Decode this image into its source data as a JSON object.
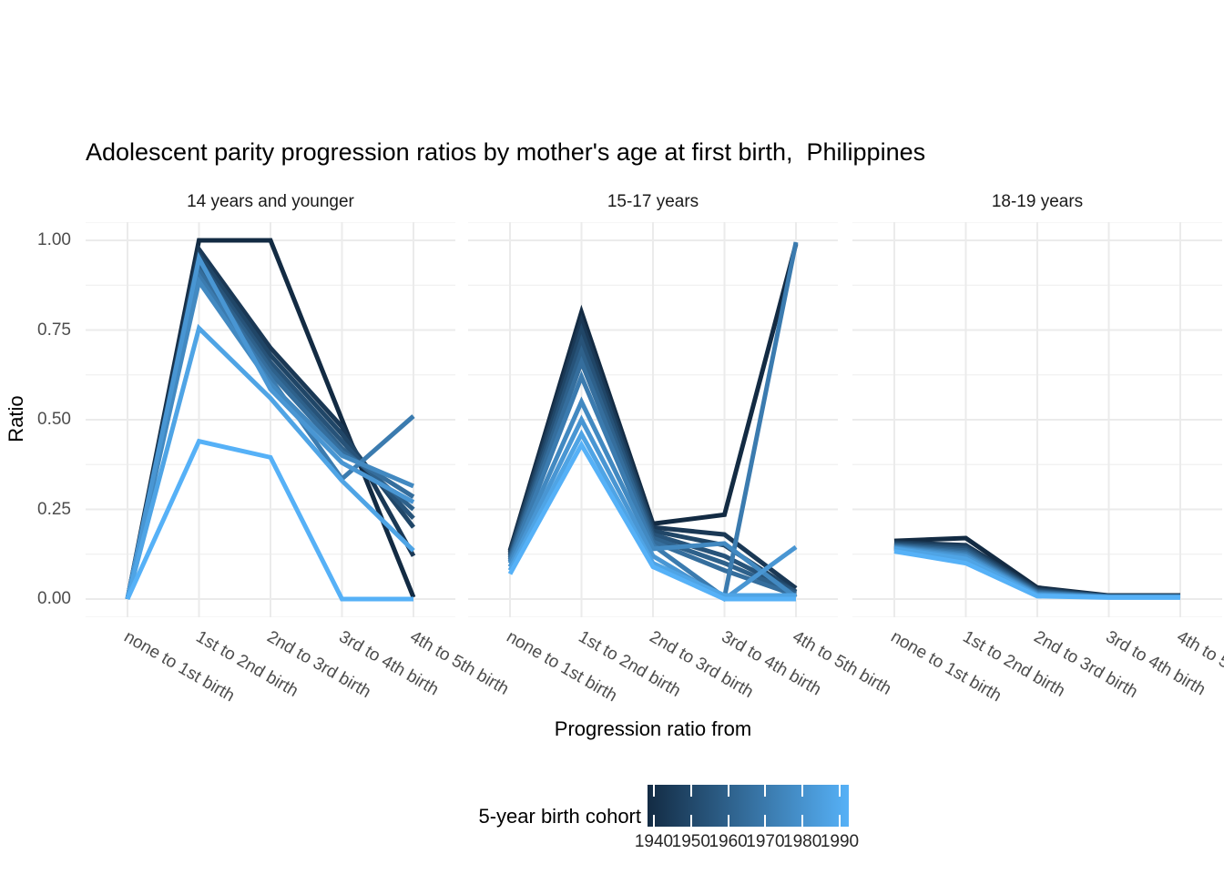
{
  "chart_data": {
    "type": "line",
    "title": "Adolescent parity progression ratios by mother's age at first birth,  Philippines",
    "xlabel": "Progression ratio from",
    "ylabel": "Ratio",
    "categories": [
      "none to 1st birth",
      "1st to 2nd birth",
      "2nd to 3rd birth",
      "3rd to 4th birth",
      "4th to 5th birth"
    ],
    "y_ticks": [
      "1.00",
      "0.75",
      "0.50",
      "0.25",
      "0.00"
    ],
    "y_tick_values": [
      1.0,
      0.75,
      0.5,
      0.25,
      0.0
    ],
    "ylim": [
      0,
      1
    ],
    "grid": "major+minor, light gray on white",
    "legend": {
      "title": "5-year birth cohort",
      "position": "bottom",
      "type": "colorbar",
      "ticks": [
        "1940",
        "1950",
        "1960",
        "1970",
        "1980",
        "1990"
      ],
      "color_low": "#132B43",
      "color_high": "#56B1F7"
    },
    "facets": [
      {
        "label": "14 years and younger",
        "series": [
          {
            "cohort": 1940,
            "values": [
              0.0,
              1.0,
              1.0,
              0.5,
              0.005
            ]
          },
          {
            "cohort": 1945,
            "values": [
              0.0,
              0.975,
              0.7,
              0.48,
              0.12
            ]
          },
          {
            "cohort": 1950,
            "values": [
              0.0,
              0.96,
              0.68,
              0.46,
              0.2
            ]
          },
          {
            "cohort": 1955,
            "values": [
              0.0,
              0.945,
              0.66,
              0.44,
              0.225
            ]
          },
          {
            "cohort": 1960,
            "values": [
              0.0,
              0.93,
              0.645,
              0.42,
              0.25
            ]
          },
          {
            "cohort": 1965,
            "values": [
              0.0,
              0.915,
              0.63,
              0.41,
              0.285
            ]
          },
          {
            "cohort": 1970,
            "values": [
              0.0,
              0.9,
              0.615,
              0.335,
              0.51
            ]
          },
          {
            "cohort": 1975,
            "values": [
              0.0,
              0.885,
              0.6,
              0.4,
              0.315
            ]
          },
          {
            "cohort": 1980,
            "values": [
              0.0,
              0.95,
              0.585,
              0.38,
              0.27
            ]
          },
          {
            "cohort": 1985,
            "values": [
              0.0,
              0.755,
              0.56,
              0.33,
              0.135
            ]
          },
          {
            "cohort": 1990,
            "values": [
              0.0,
              0.44,
              0.395,
              0.0,
              0.0
            ]
          }
        ]
      },
      {
        "label": "15-17 years",
        "series": [
          {
            "cohort": 1940,
            "values": [
              0.135,
              0.8,
              0.21,
              0.235,
              0.99
            ]
          },
          {
            "cohort": 1945,
            "values": [
              0.13,
              0.775,
              0.2,
              0.18,
              0.03
            ]
          },
          {
            "cohort": 1950,
            "values": [
              0.125,
              0.75,
              0.19,
              0.15,
              0.02
            ]
          },
          {
            "cohort": 1955,
            "values": [
              0.12,
              0.72,
              0.18,
              0.12,
              0.02
            ]
          },
          {
            "cohort": 1960,
            "values": [
              0.115,
              0.69,
              0.17,
              0.1,
              0.015
            ]
          },
          {
            "cohort": 1965,
            "values": [
              0.11,
              0.66,
              0.16,
              0.08,
              0.01
            ]
          },
          {
            "cohort": 1970,
            "values": [
              0.105,
              0.62,
              0.15,
              0.005,
              0.995
            ]
          },
          {
            "cohort": 1975,
            "values": [
              0.1,
              0.55,
              0.14,
              0.155,
              0.005
            ]
          },
          {
            "cohort": 1980,
            "values": [
              0.09,
              0.5,
              0.12,
              0.0,
              0.145
            ]
          },
          {
            "cohort": 1985,
            "values": [
              0.08,
              0.46,
              0.1,
              0.01,
              0.01
            ]
          },
          {
            "cohort": 1990,
            "values": [
              0.07,
              0.43,
              0.09,
              0.0,
              0.0
            ]
          }
        ]
      },
      {
        "label": "18-19 years",
        "series": [
          {
            "cohort": 1940,
            "values": [
              0.162,
              0.17,
              0.032,
              0.01,
              0.01
            ]
          },
          {
            "cohort": 1945,
            "values": [
              0.158,
              0.15,
              0.028,
              0.009,
              0.009
            ]
          },
          {
            "cohort": 1950,
            "values": [
              0.155,
              0.145,
              0.025,
              0.008,
              0.008
            ]
          },
          {
            "cohort": 1955,
            "values": [
              0.152,
              0.14,
              0.022,
              0.008,
              0.008
            ]
          },
          {
            "cohort": 1960,
            "values": [
              0.15,
              0.135,
              0.02,
              0.007,
              0.007
            ]
          },
          {
            "cohort": 1965,
            "values": [
              0.148,
              0.13,
              0.018,
              0.007,
              0.007
            ]
          },
          {
            "cohort": 1970,
            "values": [
              0.146,
              0.126,
              0.016,
              0.006,
              0.006
            ]
          },
          {
            "cohort": 1975,
            "values": [
              0.144,
              0.122,
              0.014,
              0.006,
              0.006
            ]
          },
          {
            "cohort": 1980,
            "values": [
              0.142,
              0.118,
              0.012,
              0.005,
              0.005
            ]
          },
          {
            "cohort": 1985,
            "values": [
              0.14,
              0.112,
              0.01,
              0.005,
              0.005
            ]
          },
          {
            "cohort": 1990,
            "values": [
              0.133,
              0.1,
              0.008,
              0.004,
              0.004
            ]
          }
        ]
      }
    ]
  }
}
